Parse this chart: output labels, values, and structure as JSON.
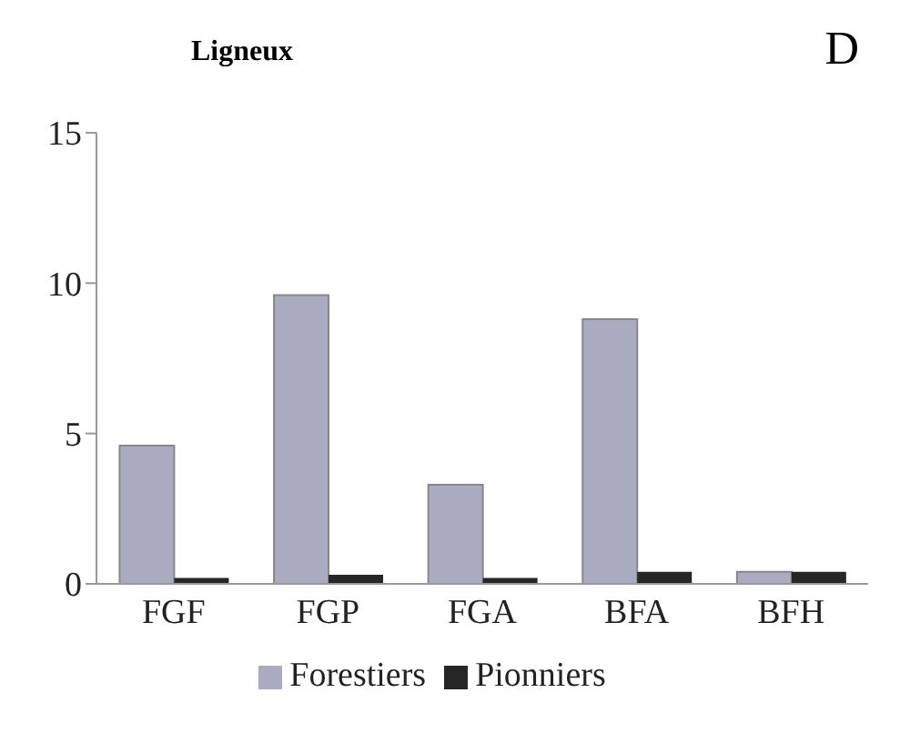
{
  "chart_data": {
    "type": "bar",
    "title": "Ligneux",
    "annotations": [
      "D"
    ],
    "categories": [
      "FGF",
      "FGP",
      "FGA",
      "BFA",
      "BFH"
    ],
    "series": [
      {
        "name": "Forestiers",
        "color": "#aaaac0",
        "values": [
          4.6,
          9.6,
          3.3,
          8.8,
          0.4
        ]
      },
      {
        "name": "Pionniers",
        "color": "#262626",
        "values": [
          0.2,
          0.3,
          0.2,
          0.4,
          0.4
        ]
      }
    ],
    "ylim": [
      0,
      15
    ],
    "yticks": [
      0,
      5,
      10,
      15
    ],
    "grid": false,
    "legend": "bottom"
  }
}
